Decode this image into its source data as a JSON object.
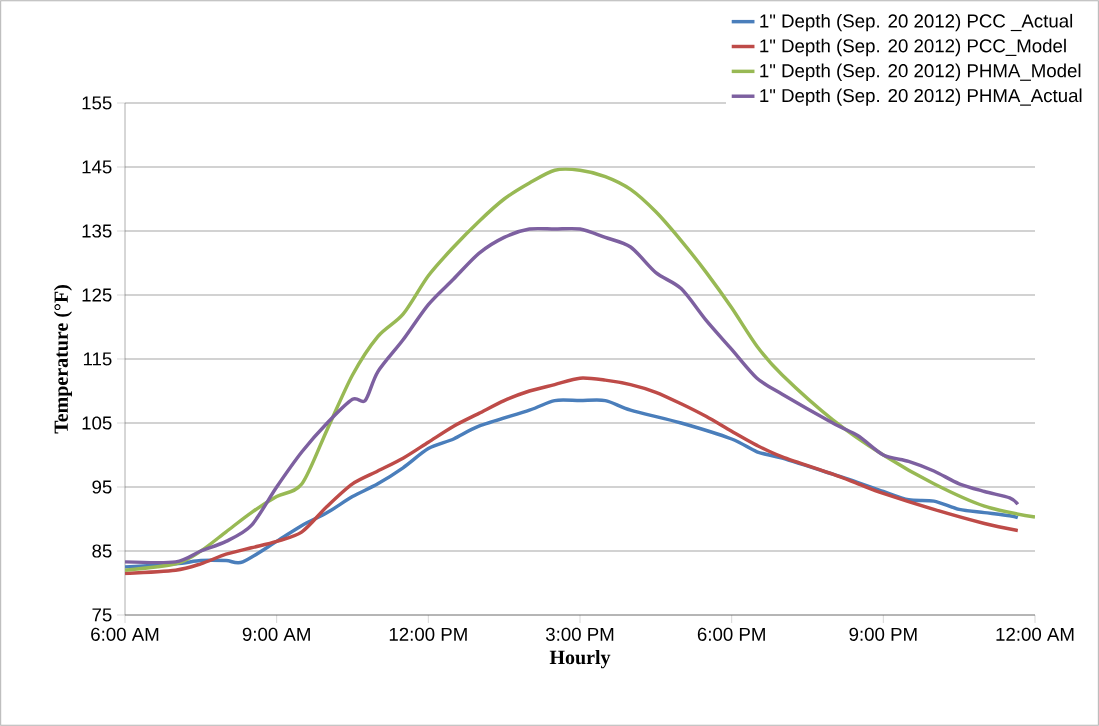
{
  "chart_data": {
    "type": "line",
    "xlabel": "Hourly",
    "ylabel": "Temperature (°F)",
    "xlim": [
      6,
      24
    ],
    "ylim": [
      75,
      155
    ],
    "xticks": [
      {
        "value": 6,
        "label": "6:00 AM"
      },
      {
        "value": 9,
        "label": "9:00 AM"
      },
      {
        "value": 12,
        "label": "12:00 PM"
      },
      {
        "value": 15,
        "label": "3:00 PM"
      },
      {
        "value": 18,
        "label": "6:00 PM"
      },
      {
        "value": 21,
        "label": "9:00 PM"
      },
      {
        "value": 24,
        "label": "12:00 AM"
      }
    ],
    "yticks": [
      75,
      85,
      95,
      105,
      115,
      125,
      135,
      145,
      155
    ],
    "grid": "y",
    "legend": "top right",
    "line_style": "solid",
    "marker": "none",
    "series": [
      {
        "name": "1\" Depth  (Sep. 20 2012) PCC _Actual",
        "color": "#4a7ebb",
        "x": [
          6,
          7,
          7.5,
          8,
          8.33,
          9,
          9.5,
          10,
          10.5,
          11,
          11.5,
          12,
          12.5,
          13,
          14,
          14.5,
          15,
          15.5,
          16,
          17,
          18,
          18.5,
          19,
          20,
          20.5,
          21,
          21.5,
          22,
          22.5,
          23,
          23.5,
          23.66
        ],
        "values": [
          82.5,
          83,
          83.5,
          83.5,
          83.3,
          86.5,
          89,
          91,
          93.5,
          95.5,
          98,
          101,
          102.5,
          104.5,
          107,
          108.5,
          108.5,
          108.5,
          107,
          105,
          102.5,
          100.5,
          99.5,
          97,
          95.7,
          94.3,
          93,
          92.8,
          91.5,
          91,
          90.5,
          90.2
        ]
      },
      {
        "name": "1\" Depth  (Sep. 20 2012) PCC_Model",
        "color": "#be4b48",
        "x": [
          6,
          7,
          7.5,
          8,
          8.5,
          9,
          9.5,
          10,
          10.5,
          11,
          11.5,
          12,
          12.5,
          13,
          13.5,
          14,
          14.5,
          15,
          15.5,
          16,
          16.5,
          17,
          17.5,
          18,
          18.5,
          19,
          20,
          20.5,
          21,
          22,
          23,
          23.66
        ],
        "values": [
          81.5,
          82,
          83,
          84.5,
          85.5,
          86.5,
          88,
          92,
          95.5,
          97.5,
          99.5,
          102,
          104.5,
          106.5,
          108.5,
          110,
          111,
          112,
          111.7,
          111,
          109.8,
          108,
          106,
          103.7,
          101.5,
          99.7,
          97,
          95.5,
          94,
          91.5,
          89.3,
          88.2
        ]
      },
      {
        "name": "1\" Depth  (Sep. 20 2012) PHMA_Model",
        "color": "#98b954",
        "x": [
          6,
          7,
          7.5,
          8,
          8.5,
          9,
          9.5,
          10,
          10.5,
          11,
          11.5,
          12,
          12.5,
          13,
          13.5,
          14,
          14.5,
          15,
          15.5,
          16,
          16.5,
          17,
          17.5,
          18,
          18.5,
          19,
          20,
          21,
          22,
          23,
          24
        ],
        "values": [
          82,
          83,
          85,
          88,
          91,
          93.5,
          95.5,
          104,
          112.5,
          118.5,
          122,
          128,
          132.5,
          136.5,
          140,
          142.5,
          144.5,
          144.5,
          143.5,
          141.5,
          138,
          133.5,
          128.5,
          123,
          117,
          112.5,
          105.5,
          100,
          95.5,
          92,
          90.3
        ]
      },
      {
        "name": "1\" Depth  (Sep. 20 2012) PHMA_Actual",
        "color": "#7d60a0",
        "x": [
          6,
          7,
          7.5,
          8,
          8.5,
          9,
          9.5,
          10,
          10.5,
          10.75,
          11,
          11.5,
          12,
          12.5,
          13,
          13.5,
          14,
          14.5,
          15,
          15.5,
          16,
          16.5,
          17,
          17.5,
          18,
          18.5,
          19,
          20,
          20.5,
          21,
          21.5,
          22,
          22.5,
          23,
          23.5,
          23.66
        ],
        "values": [
          83.3,
          83.3,
          85,
          86.5,
          89,
          95,
          100.5,
          105,
          108.7,
          108.5,
          113,
          118,
          123.5,
          127.5,
          131.5,
          134,
          135.3,
          135.3,
          135.3,
          134,
          132.5,
          128.5,
          126,
          121,
          116.5,
          112,
          109.5,
          105,
          103,
          100,
          99,
          97.5,
          95.5,
          94.3,
          93.3,
          92.3
        ]
      }
    ]
  }
}
